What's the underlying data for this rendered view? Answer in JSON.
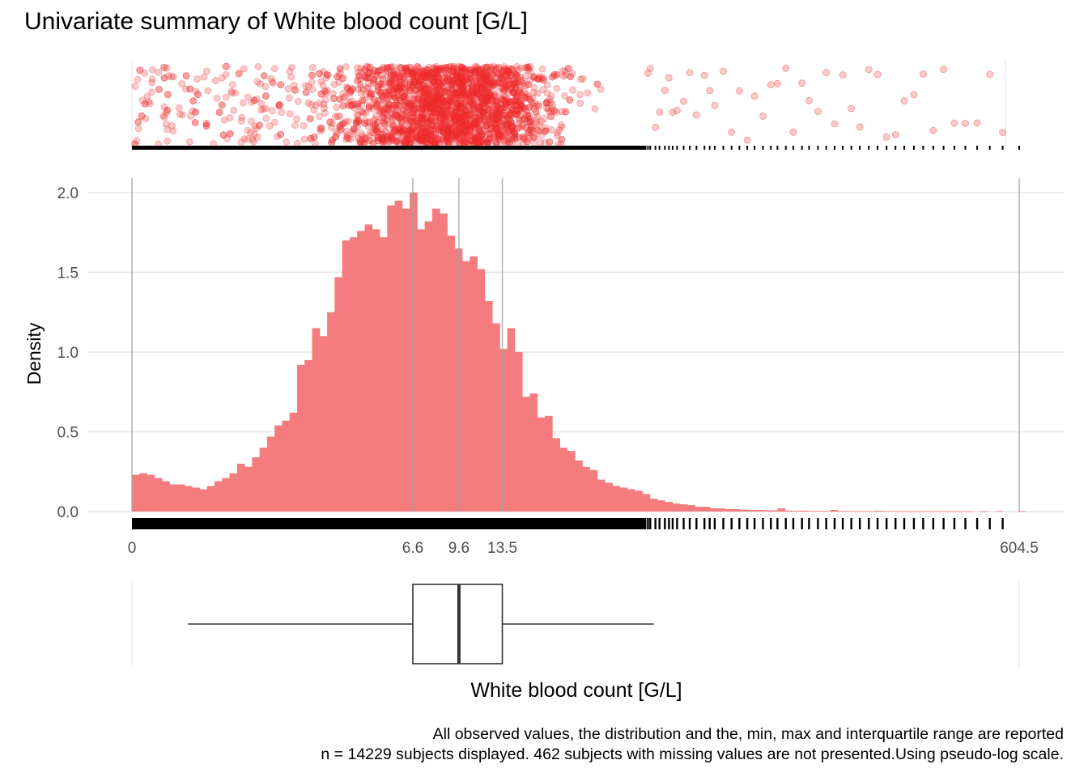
{
  "title": "Univariate summary of White blood count [G/L]",
  "caption_line1": "All observed values, the distribution and the, min, max and interquartile range are reported",
  "caption_line2": "n = 14229 subjects displayed. 462 subjects with missing values are not presented.Using pseudo-log scale.",
  "colors": {
    "points": "#ef2b2d",
    "bars": "#f47c7e",
    "rug": "#000000",
    "grid": "#e6e6e6",
    "refline": "#a3a3a3",
    "axis_text": "#4d4d4d"
  },
  "chart_data": {
    "type": "bar",
    "xlabel": "White blood count [G/L]",
    "ylabel": "Density",
    "x_scale": "pseudo-log",
    "x_ticks": [
      {
        "value": 0,
        "label": "0"
      },
      {
        "value": 6.6,
        "label": "6.6"
      },
      {
        "value": 9.6,
        "label": "9.6"
      },
      {
        "value": 13.5,
        "label": "13.5"
      },
      {
        "value": 604.5,
        "label": "604.5"
      }
    ],
    "reference_lines": [
      0,
      6.6,
      9.6,
      13.5,
      604.5
    ],
    "ylim": [
      0,
      2.1
    ],
    "y_ticks": [
      {
        "value": 0,
        "label": "0.0"
      },
      {
        "value": 0.5,
        "label": "0.5"
      },
      {
        "value": 1.0,
        "label": "1.0"
      },
      {
        "value": 1.5,
        "label": "1.5"
      },
      {
        "value": 2.0,
        "label": "2.0"
      }
    ],
    "grid": true,
    "n_subjects": 14229,
    "missing": 462,
    "bin_start_log": 0,
    "bin_width_log": 0.0542,
    "histogram_density": [
      0.23,
      0.24,
      0.23,
      0.21,
      0.19,
      0.17,
      0.17,
      0.16,
      0.15,
      0.14,
      0.16,
      0.19,
      0.21,
      0.24,
      0.3,
      0.28,
      0.34,
      0.4,
      0.47,
      0.54,
      0.57,
      0.62,
      0.92,
      0.95,
      1.15,
      1.1,
      1.25,
      1.47,
      1.7,
      1.72,
      1.76,
      1.8,
      1.77,
      1.72,
      1.92,
      1.95,
      1.9,
      2.0,
      1.77,
      1.82,
      1.9,
      1.87,
      1.73,
      1.65,
      1.57,
      1.6,
      1.52,
      1.32,
      1.18,
      1.02,
      1.15,
      1.0,
      0.72,
      0.74,
      0.59,
      0.6,
      0.46,
      0.4,
      0.38,
      0.32,
      0.28,
      0.26,
      0.2,
      0.18,
      0.16,
      0.15,
      0.14,
      0.13,
      0.11,
      0.08,
      0.07,
      0.06,
      0.05,
      0.045,
      0.04,
      0.03,
      0.03,
      0.02,
      0.02,
      0.015,
      0.015,
      0.012,
      0.01,
      0.01,
      0.008,
      0.008,
      0.02,
      0.006,
      0.005,
      0.006,
      0.004,
      0.004,
      0.003,
      0.01,
      0.003,
      0.003,
      0.002,
      0.002,
      0.002,
      0.005,
      0.002,
      0.002,
      0.002,
      0.001,
      0.001,
      0.002,
      0.001,
      0.001,
      0.001,
      0.002,
      0.001,
      0.001,
      0,
      0.001,
      0,
      0.002,
      0,
      0,
      0.001,
      0,
      0,
      0,
      0,
      0,
      0,
      0,
      0
    ],
    "rug_outliers": [
      40.5,
      41.2,
      42.8,
      44.1,
      45.9,
      47.3,
      48.6,
      50.2,
      52.7,
      55.1,
      57.9,
      61.4,
      63.8,
      66.2,
      70.5,
      74.9,
      79.3,
      84.0,
      88.6,
      94.2,
      99.8,
      104.7,
      111.3,
      117.5,
      125.2,
      131.8,
      140.6,
      149.3,
      158.7,
      168.4,
      179.2,
      190.6,
      203.5,
      216.8,
      231.4,
      246.9,
      263.0,
      282.1,
      301.7,
      324.6,
      349.8,
      378.2,
      409.5,
      446.0,
      488.7,
      536.4
    ],
    "boxplot": {
      "whisker_low": 0.5,
      "q1": 6.6,
      "median": 9.6,
      "q3": 13.5,
      "whisker_high": 42.3
    }
  }
}
